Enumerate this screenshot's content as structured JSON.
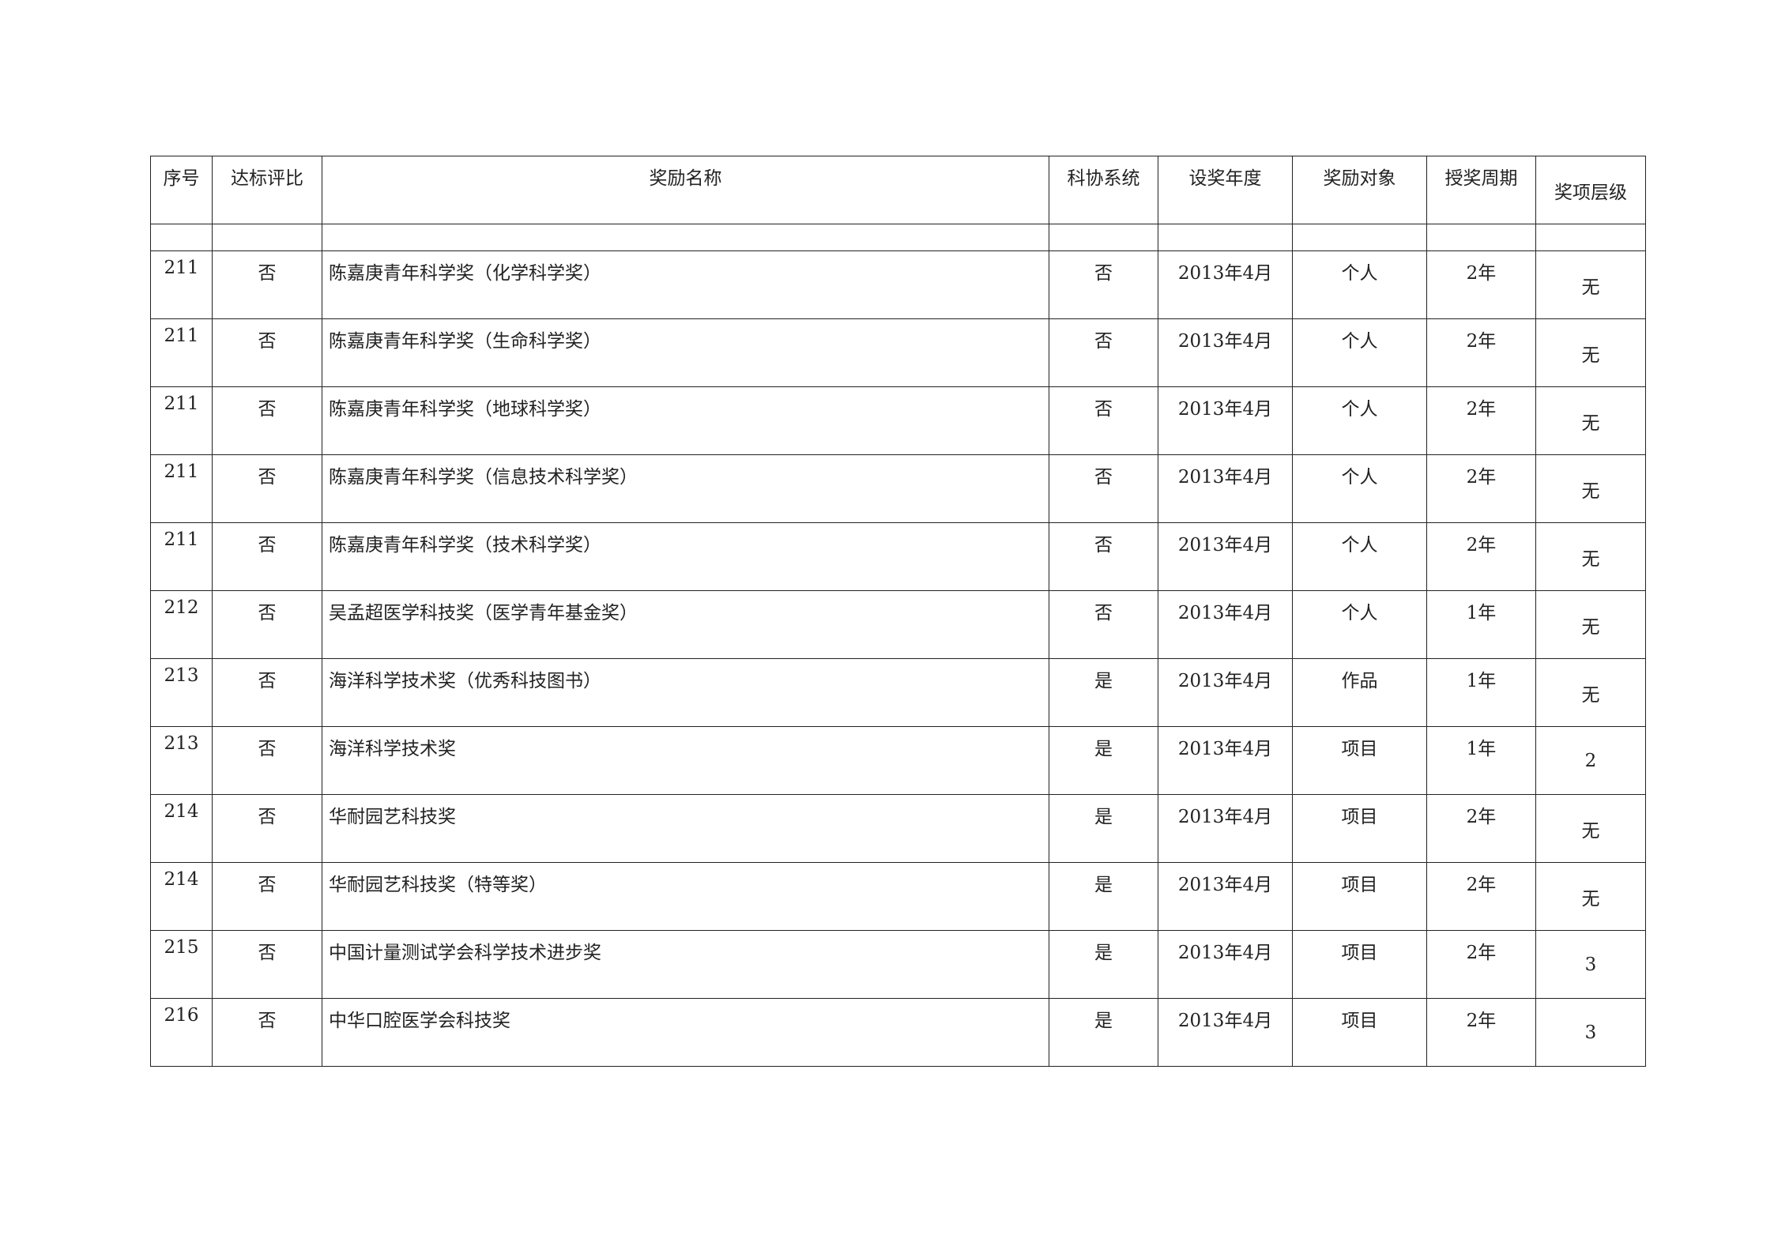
{
  "headers": [
    "序号",
    "达标评比",
    "奖励名称",
    "科协系统",
    "设奖年度",
    "奖励对象",
    "授奖周期",
    "奖项层级"
  ],
  "rows": [
    {
      "no": "211",
      "eval": "否",
      "name": "陈嘉庚青年科学奖（化学科学奖）",
      "kexie": "否",
      "year": "2013年4月",
      "target": "个人",
      "cycle": "2年",
      "level": "无"
    },
    {
      "no": "211",
      "eval": "否",
      "name": "陈嘉庚青年科学奖（生命科学奖）",
      "kexie": "否",
      "year": "2013年4月",
      "target": "个人",
      "cycle": "2年",
      "level": "无"
    },
    {
      "no": "211",
      "eval": "否",
      "name": "陈嘉庚青年科学奖（地球科学奖）",
      "kexie": "否",
      "year": "2013年4月",
      "target": "个人",
      "cycle": "2年",
      "level": "无"
    },
    {
      "no": "211",
      "eval": "否",
      "name": "陈嘉庚青年科学奖（信息技术科学奖）",
      "kexie": "否",
      "year": "2013年4月",
      "target": "个人",
      "cycle": "2年",
      "level": "无"
    },
    {
      "no": "211",
      "eval": "否",
      "name": "陈嘉庚青年科学奖（技术科学奖）",
      "kexie": "否",
      "year": "2013年4月",
      "target": "个人",
      "cycle": "2年",
      "level": "无"
    },
    {
      "no": "212",
      "eval": "否",
      "name": "吴孟超医学科技奖（医学青年基金奖）",
      "kexie": "否",
      "year": "2013年4月",
      "target": "个人",
      "cycle": "1年",
      "level": "无"
    },
    {
      "no": "213",
      "eval": "否",
      "name": "海洋科学技术奖（优秀科技图书）",
      "kexie": "是",
      "year": "2013年4月",
      "target": "作品",
      "cycle": "1年",
      "level": "无"
    },
    {
      "no": "213",
      "eval": "否",
      "name": "海洋科学技术奖",
      "kexie": "是",
      "year": "2013年4月",
      "target": "项目",
      "cycle": "1年",
      "level": "2"
    },
    {
      "no": "214",
      "eval": "否",
      "name": "华耐园艺科技奖",
      "kexie": "是",
      "year": "2013年4月",
      "target": "项目",
      "cycle": "2年",
      "level": "无"
    },
    {
      "no": "214",
      "eval": "否",
      "name": "华耐园艺科技奖（特等奖）",
      "kexie": "是",
      "year": "2013年4月",
      "target": "项目",
      "cycle": "2年",
      "level": "无"
    },
    {
      "no": "215",
      "eval": "否",
      "name": "中国计量测试学会科学技术进步奖",
      "kexie": "是",
      "year": "2013年4月",
      "target": "项目",
      "cycle": "2年",
      "level": "3"
    },
    {
      "no": "216",
      "eval": "否",
      "name": "中华口腔医学会科技奖",
      "kexie": "是",
      "year": "2013年4月",
      "target": "项目",
      "cycle": "2年",
      "level": "3"
    }
  ]
}
